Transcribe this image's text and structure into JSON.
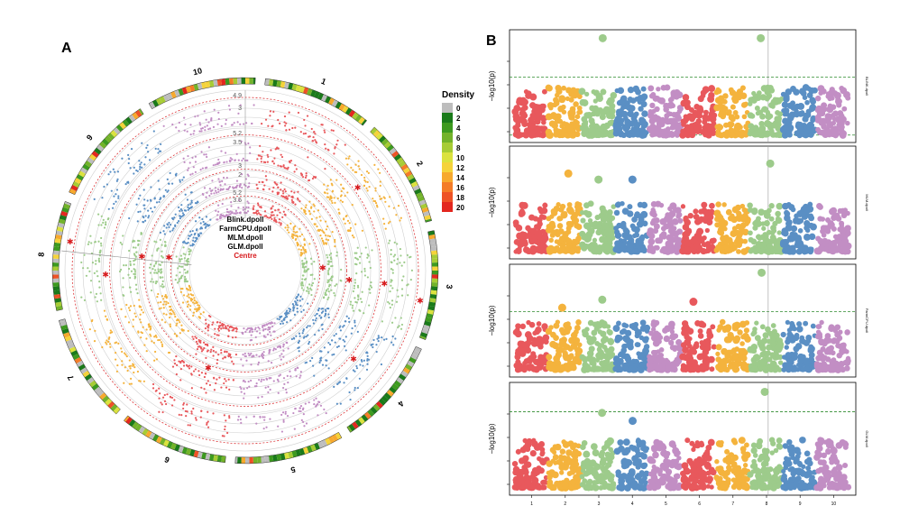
{
  "panels": {
    "a_label": "A",
    "b_label": "B"
  },
  "circular": {
    "chromosomes": [
      "1",
      "2",
      "3",
      "4",
      "5",
      "6",
      "7",
      "8",
      "9",
      "10"
    ],
    "center_labels": [
      {
        "text": "Blink.dpoll",
        "color": "#000000"
      },
      {
        "text": "FarmCPU.dpoll",
        "color": "#000000"
      },
      {
        "text": "MLM.dpoll",
        "color": "#000000"
      },
      {
        "text": "GLM.dpoll",
        "color": "#000000"
      },
      {
        "text": "Centre",
        "color": "#d7191c"
      }
    ],
    "track_axis_labels": [
      {
        "track": 1,
        "labels": [
          "4.9",
          "3"
        ]
      },
      {
        "track": 2,
        "labels": [
          "5.2",
          "3.5"
        ]
      },
      {
        "track": 3,
        "labels": [
          "3",
          "2"
        ]
      },
      {
        "track": 4,
        "labels": [
          "5.2",
          "3.5"
        ]
      }
    ]
  },
  "legend": {
    "title": "Density",
    "items": [
      {
        "label": "0",
        "color": "#bdbdbd"
      },
      {
        "label": "2",
        "color": "#1a7a1a"
      },
      {
        "label": "4",
        "color": "#3d9a1f"
      },
      {
        "label": "6",
        "color": "#73b32a"
      },
      {
        "label": "8",
        "color": "#a7cc35"
      },
      {
        "label": "10",
        "color": "#dbe23f"
      },
      {
        "label": "12",
        "color": "#f5d33b"
      },
      {
        "label": "14",
        "color": "#f7a92e"
      },
      {
        "label": "16",
        "color": "#f47c28"
      },
      {
        "label": "18",
        "color": "#ee5226"
      },
      {
        "label": "20",
        "color": "#e3271f"
      }
    ]
  },
  "manhattan": {
    "ylabel": "−log10(p)",
    "x_ticks": [
      "1",
      "2",
      "3",
      "4",
      "5",
      "6",
      "7",
      "8",
      "9",
      "10"
    ],
    "panel_right_labels": [
      "BLINK.dpoll",
      "MLM.dpoll",
      "FarmCPU.dpoll",
      "GLM.dpoll"
    ]
  },
  "chart_data": {
    "type": "scatter",
    "description_free": true,
    "chromosome_colors": [
      "#e8585c",
      "#f4b33d",
      "#9dcb8b",
      "#5a8fc4",
      "#c28ec4"
    ],
    "chromosomes": [
      "1",
      "2",
      "3",
      "4",
      "5",
      "6",
      "7",
      "8",
      "9",
      "10"
    ],
    "highlighted_chromosome": "8",
    "series": [
      {
        "name": "Blink.dpoll",
        "threshold_present": true,
        "peak_chromosomes": [
          "3",
          "8"
        ]
      },
      {
        "name": "MLM.dpoll",
        "threshold_present": false,
        "peak_chromosomes": [
          "2",
          "3",
          "4",
          "8"
        ]
      },
      {
        "name": "FarmCPU.dpoll",
        "threshold_present": true,
        "peak_chromosomes": [
          "3",
          "6",
          "8"
        ]
      },
      {
        "name": "GLM.dpoll",
        "threshold_present": true,
        "peak_chromosomes": [
          "3",
          "8"
        ]
      }
    ]
  }
}
